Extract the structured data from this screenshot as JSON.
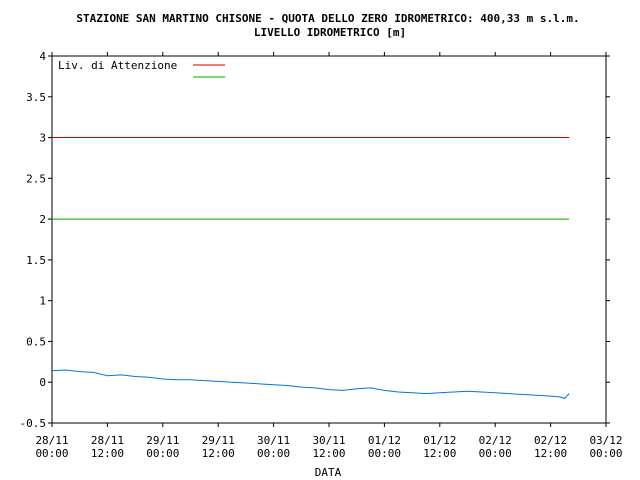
{
  "chart_data": {
    "type": "line",
    "title": "STAZIONE SAN MARTINO CHISONE - QUOTA DELLO ZERO IDROMETRICO: 400,33 m s.l.m.",
    "subtitle": "LIVELLO IDROMETRICO [m]",
    "xlabel": "DATA",
    "ylabel": "",
    "ylim": [
      -0.5,
      4
    ],
    "yticks": [
      "-0.5",
      "0",
      "0.5",
      "1",
      "1.5",
      "2",
      "2.5",
      "3",
      "3.5",
      "4"
    ],
    "xlim": [
      "28/11 00:00",
      "03/12 00:00"
    ],
    "xticks": [
      {
        "date": "28/11",
        "time": "00:00"
      },
      {
        "date": "28/11",
        "time": "12:00"
      },
      {
        "date": "29/11",
        "time": "00:00"
      },
      {
        "date": "29/11",
        "time": "12:00"
      },
      {
        "date": "30/11",
        "time": "00:00"
      },
      {
        "date": "30/11",
        "time": "12:00"
      },
      {
        "date": "01/12",
        "time": "00:00"
      },
      {
        "date": "01/12",
        "time": "12:00"
      },
      {
        "date": "02/12",
        "time": "00:00"
      },
      {
        "date": "02/12",
        "time": "12:00"
      },
      {
        "date": "03/12",
        "time": "00:00"
      }
    ],
    "grid": false,
    "legend_position": "top-left",
    "thresholds": [
      {
        "name": "Liv. di Attenzione",
        "value": 3,
        "color": "#cc0000"
      },
      {
        "name": "",
        "value": 2,
        "color": "#00aa00"
      }
    ],
    "series": [
      {
        "name": "",
        "color": "#0077dd",
        "x": [
          "28/11 00:00",
          "28/11 03:00",
          "28/11 06:00",
          "28/11 09:00",
          "28/11 12:00",
          "28/11 15:00",
          "28/11 18:00",
          "28/11 21:00",
          "29/11 00:00",
          "29/11 03:00",
          "29/11 06:00",
          "29/11 09:00",
          "29/11 12:00",
          "29/11 15:00",
          "29/11 18:00",
          "29/11 21:00",
          "30/11 00:00",
          "30/11 03:00",
          "30/11 06:00",
          "30/11 09:00",
          "30/11 12:00",
          "30/11 15:00",
          "30/11 18:00",
          "30/11 21:00",
          "01/12 00:00",
          "01/12 03:00",
          "01/12 06:00",
          "01/12 09:00",
          "01/12 12:00",
          "01/12 15:00",
          "01/12 18:00",
          "01/12 21:00",
          "02/12 00:00",
          "02/12 03:00",
          "02/12 06:00",
          "02/12 09:00",
          "02/12 12:00",
          "02/12 14:00",
          "02/12 15:00",
          "02/12 16:00"
        ],
        "values": [
          0.14,
          0.15,
          0.13,
          0.12,
          0.08,
          0.09,
          0.07,
          0.06,
          0.04,
          0.03,
          0.03,
          0.02,
          0.01,
          0.0,
          -0.01,
          -0.02,
          -0.03,
          -0.04,
          -0.06,
          -0.07,
          -0.09,
          -0.1,
          -0.08,
          -0.07,
          -0.1,
          -0.12,
          -0.13,
          -0.14,
          -0.13,
          -0.12,
          -0.11,
          -0.12,
          -0.13,
          -0.14,
          -0.15,
          -0.16,
          -0.17,
          -0.18,
          -0.2,
          -0.14
        ]
      }
    ]
  }
}
